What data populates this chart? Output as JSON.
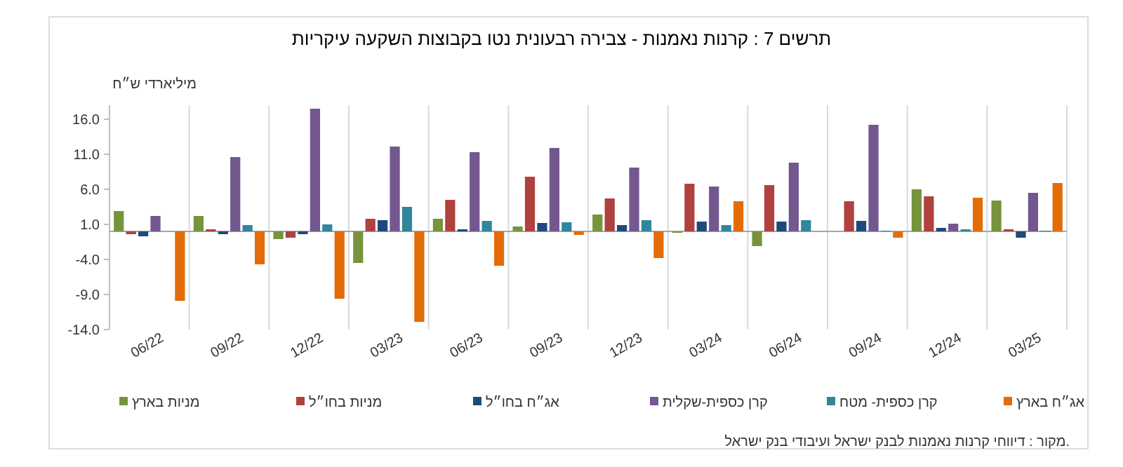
{
  "chart_data": {
    "type": "bar",
    "title": "תרשים 7 : קרנות נאמנות - צבירה רבעונית נטו בקבוצות השקעה עיקריות",
    "ylabel": "מיליארדי ש״ח",
    "annotations": [
      "מקור : דיווחי קרנות נאמנות לבנק ישראל ועיבודי בנק ישראל."
    ],
    "categories": [
      "06/22",
      "09/22",
      "12/22",
      "03/23",
      "06/23",
      "09/23",
      "12/23",
      "03/24",
      "06/24",
      "09/24",
      "12/24",
      "03/25"
    ],
    "series": [
      {
        "name": "מניות בארץ",
        "color": "#77933c",
        "values": [
          2.9,
          2.2,
          -1.1,
          -4.5,
          1.8,
          0.7,
          2.4,
          -0.2,
          -2.1,
          0,
          6.0,
          4.4
        ]
      },
      {
        "name": "מניות בחו״ל",
        "color": "#b0413e",
        "values": [
          -0.4,
          0.3,
          -0.9,
          1.8,
          4.5,
          7.8,
          4.7,
          6.8,
          6.6,
          4.3,
          5.0,
          0.3
        ]
      },
      {
        "name": "אג״ח בחו״ל",
        "color": "#1f497d",
        "values": [
          -0.7,
          -0.4,
          -0.4,
          1.6,
          0.3,
          1.2,
          0.9,
          1.4,
          1.4,
          1.5,
          0.5,
          -0.9
        ]
      },
      {
        "name": "קרן כספית-שקלית",
        "color": "#72588f",
        "values": [
          2.2,
          10.6,
          17.5,
          12.1,
          11.3,
          11.9,
          9.1,
          6.4,
          9.8,
          15.2,
          1.1,
          5.5
        ]
      },
      {
        "name": "קרן כספית- מטח",
        "color": "#31859c",
        "values": [
          0,
          0.9,
          1.0,
          3.5,
          1.5,
          1.3,
          1.6,
          0.9,
          1.6,
          0.1,
          0.3,
          0.1
        ]
      },
      {
        "name": "אג״ח בארץ",
        "color": "#e36c09",
        "values": [
          -9.9,
          -4.7,
          -9.6,
          -12.9,
          -4.9,
          -0.5,
          -3.8,
          4.3,
          0,
          -0.9,
          4.8,
          6.9
        ]
      }
    ],
    "ylim": [
      -14,
      18
    ],
    "yticks": [
      {
        "value": -14,
        "label": "-14.0"
      },
      {
        "value": -9,
        "label": "-9.0"
      },
      {
        "value": -4,
        "label": "-4.0"
      },
      {
        "value": 1,
        "label": "1.0"
      },
      {
        "value": 6,
        "label": "6.0"
      },
      {
        "value": 11,
        "label": "11.0"
      },
      {
        "value": 16,
        "label": "16.0"
      }
    ],
    "grid": "x",
    "legend": "bottom"
  }
}
